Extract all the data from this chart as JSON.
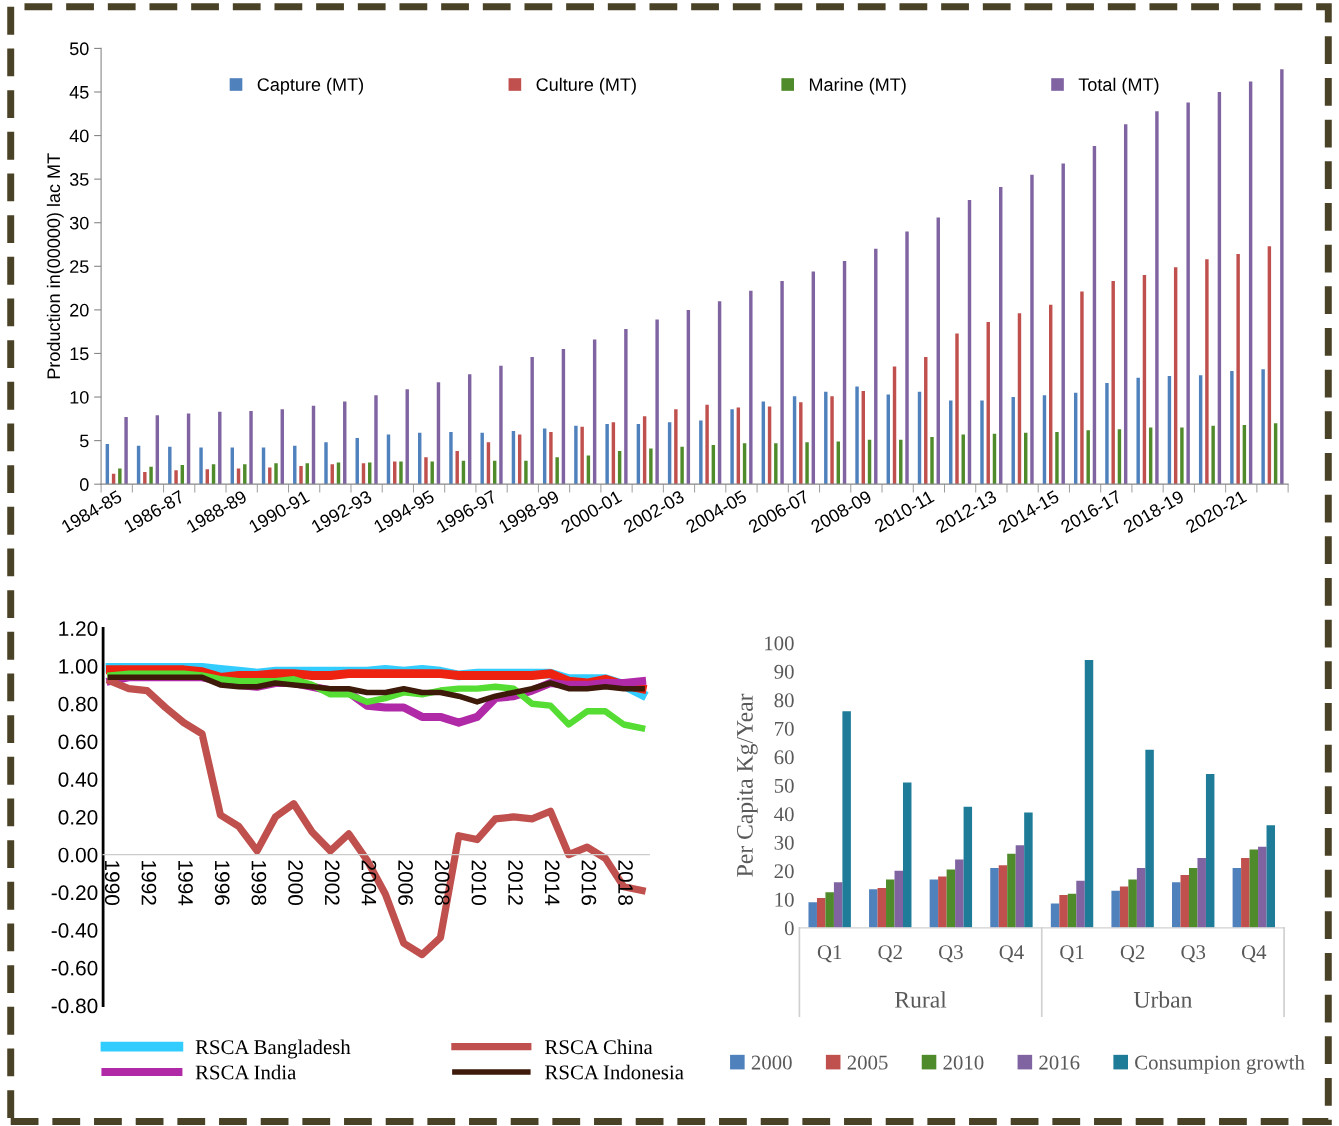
{
  "chart_data": [
    {
      "type": "bar",
      "ylabel": "Production in(00000) lac MT",
      "categories": [
        "1984-85",
        null,
        "1986-87",
        null,
        "1988-89",
        null,
        "1990-91",
        null,
        "1992-93",
        null,
        "1994-95",
        null,
        "1996-97",
        null,
        "1998-99",
        null,
        "2000-01",
        null,
        "2002-03",
        null,
        "2004-05",
        null,
        "2006-07",
        null,
        "2008-09",
        null,
        "2010-11",
        null,
        "2012-13",
        null,
        "2014-15",
        null,
        "2016-17",
        null,
        "2018-19",
        null,
        "2020-21",
        null
      ],
      "series": [
        {
          "name": "Capture (MT)",
          "color": "#4f81bd",
          "values": [
            4.6,
            4.4,
            4.3,
            4.2,
            4.2,
            4.2,
            4.4,
            4.8,
            5.3,
            5.7,
            5.9,
            6.0,
            5.9,
            6.1,
            6.4,
            6.7,
            6.9,
            6.9,
            7.1,
            7.3,
            8.6,
            9.5,
            10.1,
            10.6,
            11.2,
            10.3,
            10.6,
            9.6,
            9.6,
            10.0,
            10.2,
            10.5,
            11.6,
            12.2,
            12.4,
            12.5,
            13.0,
            13.2
          ]
        },
        {
          "name": "Culture (MT)",
          "color": "#c0504d",
          "values": [
            1.2,
            1.4,
            1.6,
            1.7,
            1.8,
            1.9,
            2.1,
            2.3,
            2.4,
            2.6,
            3.1,
            3.8,
            4.8,
            5.7,
            6.0,
            6.6,
            7.1,
            7.8,
            8.6,
            9.1,
            8.8,
            8.9,
            9.4,
            10.1,
            10.7,
            13.5,
            14.6,
            17.3,
            18.6,
            19.6,
            20.6,
            22.1,
            23.3,
            24.0,
            24.9,
            25.8,
            26.4,
            27.3
          ]
        },
        {
          "name": "Marine (MT)",
          "color": "#4f8a2b",
          "values": [
            1.8,
            2.0,
            2.2,
            2.3,
            2.3,
            2.4,
            2.4,
            2.5,
            2.5,
            2.6,
            2.6,
            2.7,
            2.7,
            2.7,
            3.1,
            3.3,
            3.8,
            4.1,
            4.3,
            4.5,
            4.7,
            4.7,
            4.8,
            4.9,
            5.1,
            5.1,
            5.4,
            5.7,
            5.8,
            5.9,
            6.0,
            6.2,
            6.3,
            6.5,
            6.5,
            6.7,
            6.8,
            7.0
          ]
        },
        {
          "name": "Total (MT)",
          "color": "#8064a2",
          "values": [
            7.7,
            7.9,
            8.1,
            8.3,
            8.4,
            8.6,
            9.0,
            9.5,
            10.2,
            10.9,
            11.7,
            12.6,
            13.6,
            14.6,
            15.5,
            16.6,
            17.8,
            18.9,
            20.0,
            21.0,
            22.2,
            23.3,
            24.4,
            25.6,
            27.0,
            29.0,
            30.6,
            32.6,
            34.1,
            35.5,
            36.8,
            38.8,
            41.3,
            42.8,
            43.8,
            45.0,
            46.2,
            47.6
          ]
        }
      ],
      "ylim": [
        0,
        50
      ],
      "yticks": [
        0,
        5,
        10,
        15,
        20,
        25,
        30,
        35,
        40,
        45,
        50
      ],
      "legend": "top"
    },
    {
      "type": "line",
      "x": [
        1990,
        1991,
        1992,
        1993,
        1994,
        1995,
        1996,
        1997,
        1998,
        1999,
        2000,
        2001,
        2002,
        2003,
        2004,
        2005,
        2006,
        2007,
        2008,
        2009,
        2010,
        2011,
        2012,
        2013,
        2014,
        2015,
        2016,
        2017,
        2018,
        2019
      ],
      "series": [
        {
          "name": "RSCA Bangladesh",
          "color": "#33ccff",
          "values": [
            0.99,
            0.99,
            0.99,
            0.99,
            0.99,
            0.99,
            0.98,
            0.97,
            0.96,
            0.97,
            0.97,
            0.97,
            0.97,
            0.97,
            0.97,
            0.98,
            0.97,
            0.98,
            0.97,
            0.95,
            0.96,
            0.96,
            0.96,
            0.96,
            0.96,
            0.93,
            0.93,
            0.93,
            0.9,
            0.85
          ]
        },
        {
          "color": "#ee2211",
          "values": [
            0.98,
            0.98,
            0.98,
            0.98,
            0.98,
            0.97,
            0.94,
            0.95,
            0.95,
            0.96,
            0.96,
            0.95,
            0.95,
            0.96,
            0.96,
            0.96,
            0.96,
            0.96,
            0.96,
            0.95,
            0.95,
            0.95,
            0.95,
            0.95,
            0.96,
            0.92,
            0.91,
            0.93,
            0.9,
            0.88
          ]
        },
        {
          "name": "RSCA India",
          "color": "#b02aa8",
          "values": [
            0.92,
            0.94,
            0.94,
            0.94,
            0.94,
            0.94,
            0.92,
            0.9,
            0.89,
            0.91,
            0.91,
            0.89,
            0.87,
            0.86,
            0.79,
            0.78,
            0.78,
            0.73,
            0.73,
            0.7,
            0.73,
            0.83,
            0.84,
            0.87,
            0.91,
            0.9,
            0.9,
            0.91,
            0.91,
            0.92
          ]
        },
        {
          "name": "RSCA China",
          "color": "#c0504d",
          "values": [
            0.92,
            0.88,
            0.87,
            0.78,
            0.7,
            0.64,
            0.21,
            0.15,
            0.02,
            0.2,
            0.27,
            0.12,
            0.02,
            0.11,
            -0.03,
            -0.21,
            -0.47,
            -0.53,
            -0.44,
            0.1,
            0.08,
            0.19,
            0.2,
            0.19,
            0.23,
            0.0,
            0.04,
            -0.02,
            -0.17,
            -0.19
          ]
        },
        {
          "color": "#55dd33",
          "values": [
            0.95,
            0.96,
            0.96,
            0.96,
            0.96,
            0.95,
            0.93,
            0.92,
            0.92,
            0.92,
            0.93,
            0.9,
            0.85,
            0.85,
            0.81,
            0.83,
            0.86,
            0.85,
            0.87,
            0.88,
            0.88,
            0.89,
            0.88,
            0.8,
            0.79,
            0.69,
            0.76,
            0.76,
            0.69,
            0.67
          ]
        },
        {
          "name": "RSCA Indonesia",
          "color": "#3d1a0a",
          "values": [
            0.94,
            0.94,
            0.94,
            0.94,
            0.94,
            0.94,
            0.9,
            0.89,
            0.89,
            0.91,
            0.9,
            0.89,
            0.88,
            0.88,
            0.86,
            0.86,
            0.88,
            0.86,
            0.86,
            0.84,
            0.81,
            0.84,
            0.86,
            0.88,
            0.91,
            0.88,
            0.88,
            0.89,
            0.88,
            0.88
          ]
        }
      ],
      "xlim": [
        1989.6,
        2019.4
      ],
      "xticks": [
        1990,
        1992,
        1994,
        1996,
        1998,
        2000,
        2002,
        2004,
        2006,
        2008,
        2010,
        2012,
        2014,
        2016,
        2018
      ],
      "ylim": [
        -0.8,
        1.2
      ],
      "yticks": [
        {
          "value": 1.2,
          "label": "1.20"
        },
        {
          "value": 1.0,
          "label": "1.00"
        },
        {
          "value": 0.8,
          "label": "0.80"
        },
        {
          "value": 0.6,
          "label": "0.60"
        },
        {
          "value": 0.4,
          "label": "0.40"
        },
        {
          "value": 0.2,
          "label": "0.20"
        },
        {
          "value": 0,
          "label": "0.00"
        },
        {
          "value": -0.2,
          "label": "-0.20"
        },
        {
          "value": -0.4,
          "label": "-0.40"
        },
        {
          "value": -0.6,
          "label": "-0.60"
        },
        {
          "value": -0.8,
          "label": "-0.80"
        }
      ],
      "legend": "bottom"
    },
    {
      "type": "bar",
      "ylabel": "Per Capita Kg/Year",
      "categories": [
        "Q1",
        "Q2",
        "Q3",
        "Q4",
        "Q1",
        "Q2",
        "Q3",
        "Q4"
      ],
      "series": [
        {
          "name": "2000",
          "color": "#4f81bd",
          "values": [
            9,
            13.5,
            17,
            21,
            8.5,
            13,
            16,
            21
          ]
        },
        {
          "name": "2005",
          "color": "#c0504d",
          "values": [
            10.5,
            14,
            18,
            22,
            11.5,
            14.5,
            18.5,
            24.5
          ]
        },
        {
          "name": "2010",
          "color": "#4f8a2b",
          "values": [
            12.5,
            17,
            20.5,
            26,
            12,
            17,
            21,
            27.5
          ]
        },
        {
          "name": "2016",
          "color": "#8064a2",
          "values": [
            16,
            20,
            24,
            29,
            16.5,
            21,
            24.5,
            28.5
          ]
        },
        {
          "name": "Consumpion growth",
          "color": "#1f7c99",
          "values": [
            76,
            51,
            42.5,
            40.5,
            94,
            62.5,
            54,
            36
          ]
        }
      ],
      "annotations": [
        "Rural",
        "Urban"
      ],
      "ylim": [
        0,
        100
      ],
      "yticks": [
        0,
        10,
        20,
        30,
        40,
        50,
        60,
        70,
        80,
        90,
        100
      ],
      "legend": "bottom"
    }
  ]
}
